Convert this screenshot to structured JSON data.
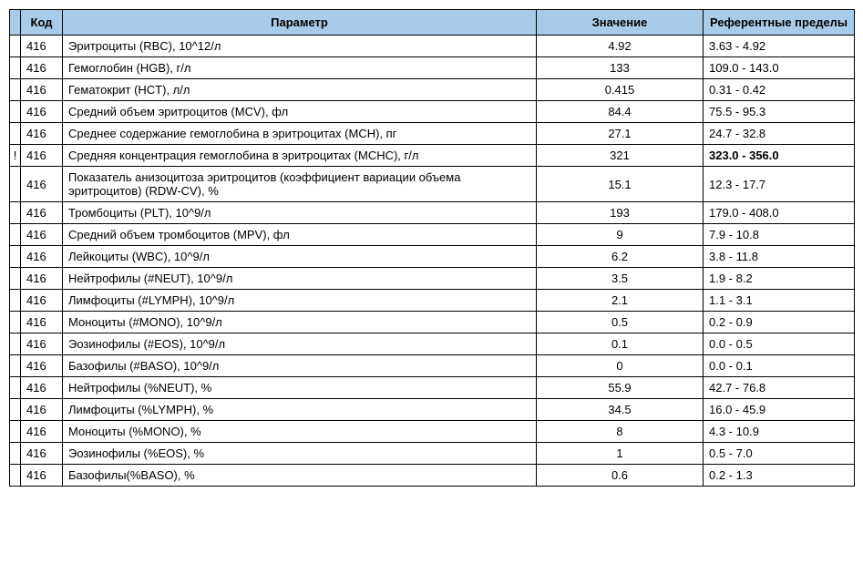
{
  "table": {
    "columns": {
      "flag": "",
      "code": "Код",
      "param": "Параметр",
      "value": "Значение",
      "ref": "Референтные пределы"
    },
    "col_widths": {
      "flag": 12,
      "code": 46,
      "param": 520,
      "value": 183,
      "ref": 166
    },
    "header_bg": "#a7cbe9",
    "border_color": "#000000",
    "text_color": "#000000",
    "fontsize": 13,
    "rows": [
      {
        "flag": "",
        "code": "416",
        "param": "Эритроциты (RBC), 10^12/л",
        "value": "4.92",
        "ref": "3.63 - 4.92",
        "ref_bold": false
      },
      {
        "flag": "",
        "code": "416",
        "param": "Гемоглобин (HGB), г/л",
        "value": "133",
        "ref": "109.0 - 143.0",
        "ref_bold": false
      },
      {
        "flag": "",
        "code": "416",
        "param": "Гематокрит (HCT), л/л",
        "value": "0.415",
        "ref": "0.31 - 0.42",
        "ref_bold": false
      },
      {
        "flag": "",
        "code": "416",
        "param": "Средний объем эритроцитов (MCV), фл",
        "value": "84.4",
        "ref": "75.5 - 95.3",
        "ref_bold": false
      },
      {
        "flag": "",
        "code": "416",
        "param": "Среднее содержание гемоглобина в эритроцитах (MCH), пг",
        "value": "27.1",
        "ref": "24.7 - 32.8",
        "ref_bold": false
      },
      {
        "flag": "!",
        "code": "416",
        "param": "Средняя концентрация гемоглобина в эритроцитах (MCHC), г/л",
        "value": "321",
        "ref": "323.0 - 356.0",
        "ref_bold": true
      },
      {
        "flag": "",
        "code": "416",
        "param": "Показатель анизоцитоза эритроцитов (коэффициент вариации объема эритроцитов) (RDW-CV), %",
        "value": "15.1",
        "ref": "12.3 - 17.7",
        "ref_bold": false
      },
      {
        "flag": "",
        "code": "416",
        "param": "Тромбоциты (PLT), 10^9/л",
        "value": "193",
        "ref": "179.0 - 408.0",
        "ref_bold": false
      },
      {
        "flag": "",
        "code": "416",
        "param": "Средний объем тромбоцитов (MPV), фл",
        "value": "9",
        "ref": "7.9 - 10.8",
        "ref_bold": false
      },
      {
        "flag": "",
        "code": "416",
        "param": "Лейкоциты (WBC), 10^9/л",
        "value": "6.2",
        "ref": "3.8 - 11.8",
        "ref_bold": false
      },
      {
        "flag": "",
        "code": "416",
        "param": "Нейтрофилы (#NEUT), 10^9/л",
        "value": "3.5",
        "ref": "1.9 - 8.2",
        "ref_bold": false
      },
      {
        "flag": "",
        "code": "416",
        "param": "Лимфоциты (#LYMPH), 10^9/л",
        "value": "2.1",
        "ref": "1.1 - 3.1",
        "ref_bold": false
      },
      {
        "flag": "",
        "code": "416",
        "param": "Моноциты (#MONO), 10^9/л",
        "value": "0.5",
        "ref": "0.2 - 0.9",
        "ref_bold": false
      },
      {
        "flag": "",
        "code": "416",
        "param": "Эозинофилы (#EOS), 10^9/л",
        "value": "0.1",
        "ref": "0.0 - 0.5",
        "ref_bold": false
      },
      {
        "flag": "",
        "code": "416",
        "param": "Базофилы (#BASO), 10^9/л",
        "value": "0",
        "ref": "0.0 - 0.1",
        "ref_bold": false
      },
      {
        "flag": "",
        "code": "416",
        "param": "Нейтрофилы (%NEUT), %",
        "value": "55.9",
        "ref": "42.7 - 76.8",
        "ref_bold": false
      },
      {
        "flag": "",
        "code": "416",
        "param": "Лимфоциты (%LYMPH), %",
        "value": "34.5",
        "ref": "16.0 - 45.9",
        "ref_bold": false
      },
      {
        "flag": "",
        "code": "416",
        "param": "Моноциты (%MONO), %",
        "value": "8",
        "ref": "4.3 - 10.9",
        "ref_bold": false
      },
      {
        "flag": "",
        "code": "416",
        "param": "Эозинофилы (%EOS), %",
        "value": "1",
        "ref": "0.5 - 7.0",
        "ref_bold": false
      },
      {
        "flag": "",
        "code": "416",
        "param": "Базофилы(%BASO), %",
        "value": "0.6",
        "ref": "0.2 - 1.3",
        "ref_bold": false
      }
    ]
  }
}
